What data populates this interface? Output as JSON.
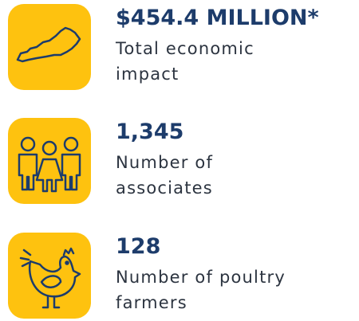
{
  "items": [
    {
      "value": "$454.4 MILLION*",
      "label": "Total economic impact"
    },
    {
      "value": "1,345",
      "label": "Number of associates"
    },
    {
      "value": "128",
      "label": "Number of poultry farmers"
    }
  ]
}
